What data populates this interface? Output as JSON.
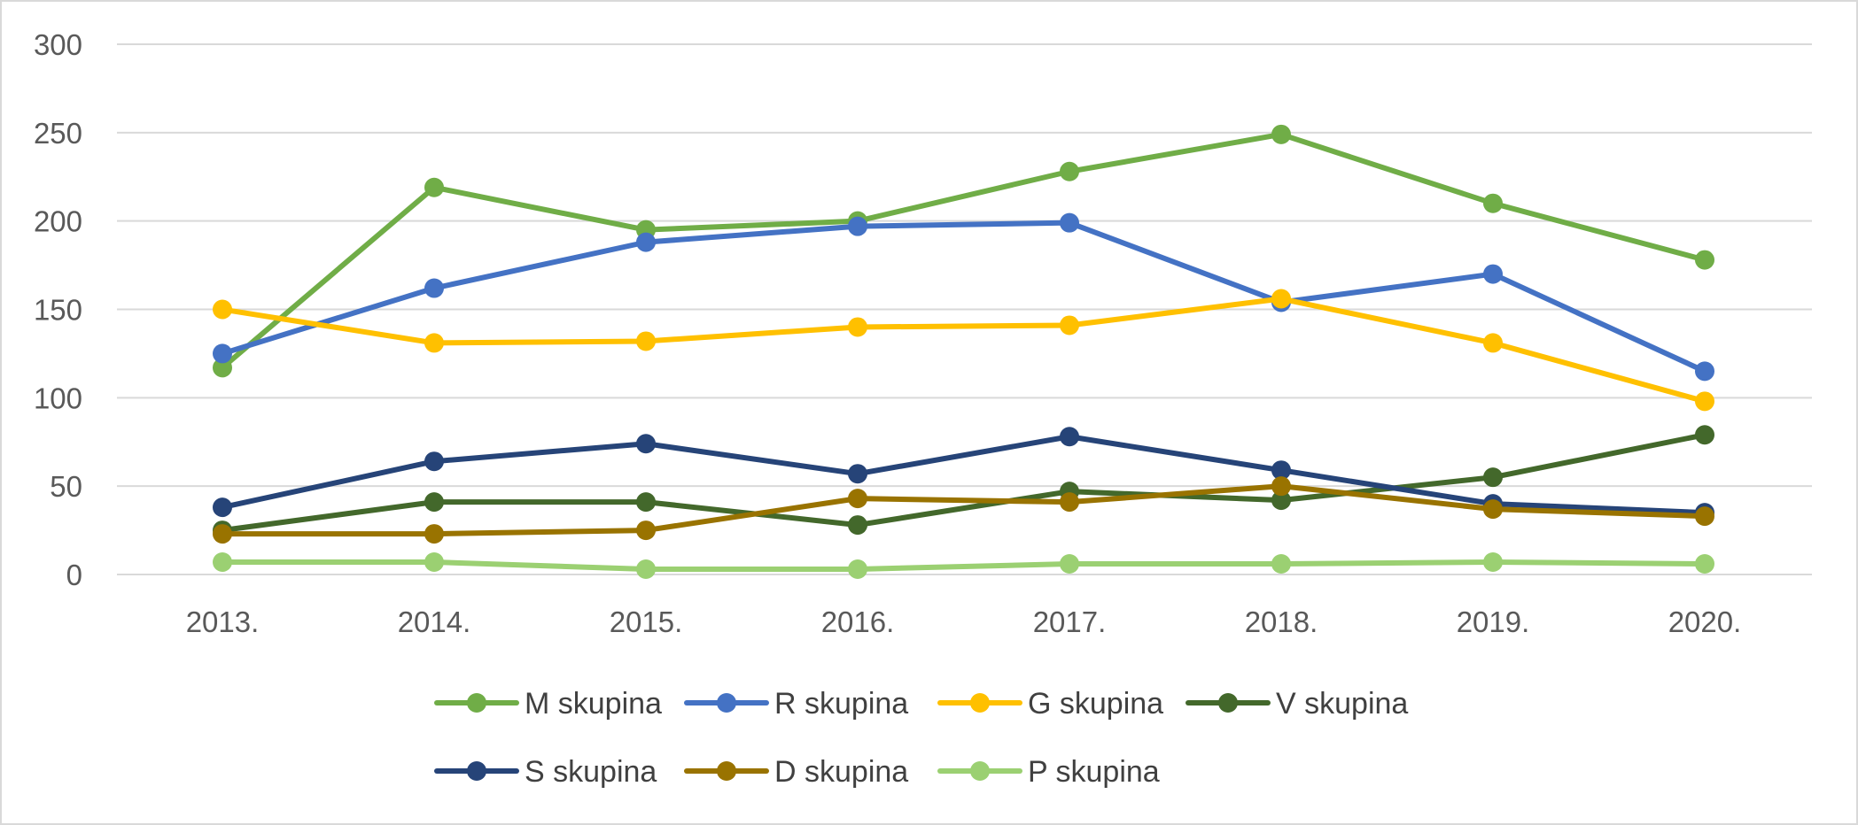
{
  "chart_data": {
    "type": "line",
    "title": "",
    "xlabel": "",
    "ylabel": "",
    "categories": [
      "2013.",
      "2014.",
      "2015.",
      "2016.",
      "2017.",
      "2018.",
      "2019.",
      "2020."
    ],
    "ylim": [
      0,
      300
    ],
    "yticks": [
      "0",
      "50",
      "100",
      "150",
      "200",
      "250",
      "300"
    ],
    "grid": true,
    "legend_position": "bottom",
    "series": [
      {
        "name": "M skupina",
        "color": "#70ad47",
        "values": [
          117,
          219,
          195,
          200,
          228,
          249,
          210,
          178
        ]
      },
      {
        "name": "R skupina",
        "color": "#4472c4",
        "values": [
          125,
          162,
          188,
          197,
          199,
          154,
          170,
          115
        ]
      },
      {
        "name": "G skupina",
        "color": "#ffc000",
        "values": [
          150,
          131,
          132,
          140,
          141,
          156,
          131,
          98
        ]
      },
      {
        "name": "V skupina",
        "color": "#43682b",
        "values": [
          25,
          41,
          41,
          28,
          47,
          42,
          55,
          79
        ]
      },
      {
        "name": "S skupina",
        "color": "#264478",
        "values": [
          38,
          64,
          74,
          57,
          78,
          59,
          40,
          35
        ]
      },
      {
        "name": "D skupina",
        "color": "#997300",
        "values": [
          23,
          23,
          25,
          43,
          41,
          50,
          37,
          33
        ]
      },
      {
        "name": "P skupina",
        "color": "#9bd072",
        "values": [
          7,
          7,
          3,
          3,
          6,
          6,
          7,
          6
        ]
      }
    ]
  }
}
